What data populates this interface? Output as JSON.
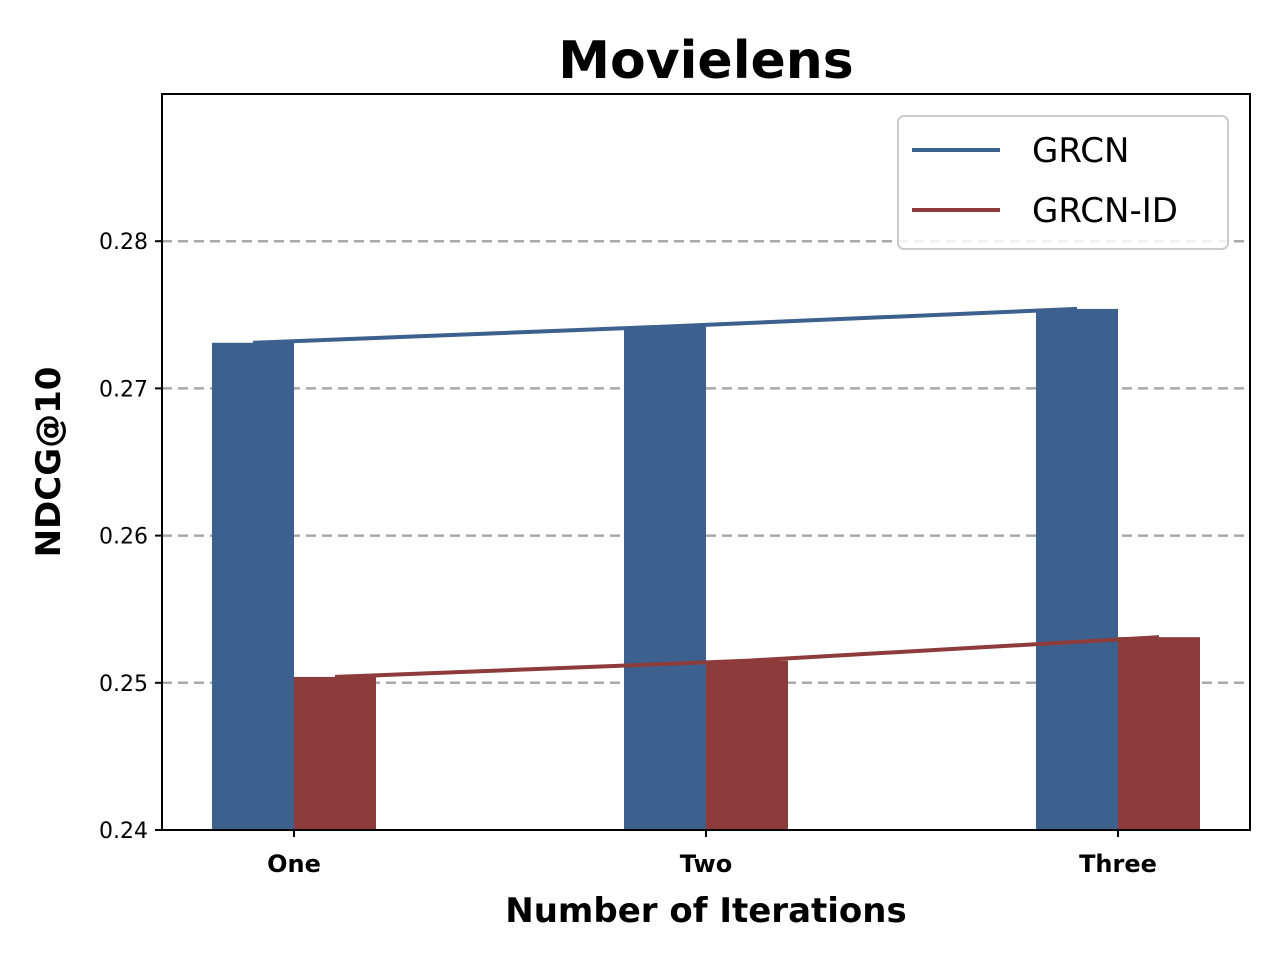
{
  "chart_data": {
    "type": "bar",
    "title": "Movielens",
    "xlabel": "Number of Iterations",
    "ylabel": "NDCG@10",
    "categories": [
      "One",
      "Two",
      "Three"
    ],
    "ylim": [
      0.24,
      0.29
    ],
    "yticks": [
      0.24,
      0.25,
      0.26,
      0.27,
      0.28
    ],
    "ytick_labels": [
      "0.24",
      "0.25",
      "0.26",
      "0.27",
      "0.28"
    ],
    "grid": true,
    "legend_position": "top-right",
    "series": [
      {
        "name": "GRCN",
        "color": "#3d618e",
        "values": [
          0.2731,
          0.2742,
          0.2754
        ],
        "trend_line": true
      },
      {
        "name": "GRCN-ID",
        "color": "#8e3b3b",
        "values": [
          0.2504,
          0.2515,
          0.2531
        ],
        "trend_line": true
      }
    ]
  }
}
